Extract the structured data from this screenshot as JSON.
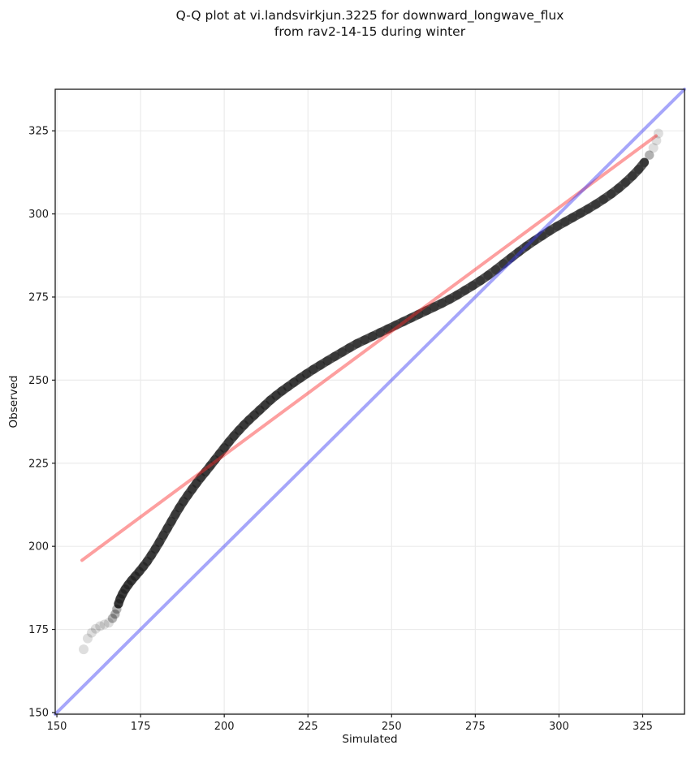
{
  "figure": {
    "title_line1": "Q-Q plot at vi.landsvirkjun.3225 for downward_longwave_flux",
    "title_line2": "from rav2-14-15 during winter"
  },
  "chart_data": {
    "type": "scatter",
    "title": "Q-Q plot at vi.landsvirkjun.3225 for downward_longwave_flux from rav2-14-15 during winter",
    "xlabel": "Simulated",
    "ylabel": "Observed",
    "xlim": [
      149.5,
      337.5
    ],
    "ylim": [
      149.5,
      337.5
    ],
    "xticks": [
      150,
      175,
      200,
      225,
      250,
      275,
      300,
      325
    ],
    "yticks": [
      150,
      175,
      200,
      225,
      250,
      275,
      300,
      325
    ],
    "grid": true,
    "grid_color": "#ebebeb",
    "background": "#ffffff",
    "axis_color": "#1a1a1a",
    "legend": "none",
    "series": [
      {
        "name": "qq-points",
        "type": "scatter",
        "color": "#000000",
        "alpha": 0.13,
        "marker_radius": 6,
        "points": [
          [
            158.0,
            169.0
          ],
          [
            159.2,
            172.3
          ],
          [
            160.4,
            174.0
          ],
          [
            161.6,
            175.2
          ],
          [
            162.9,
            176.0
          ],
          [
            164.2,
            176.5
          ],
          [
            165.5,
            177.0
          ],
          [
            166.6,
            178.3
          ],
          [
            167.4,
            179.6
          ],
          [
            167.9,
            181.1
          ],
          [
            168.4,
            182.7
          ],
          [
            168.9,
            184.2
          ],
          [
            169.6,
            185.7
          ],
          [
            170.4,
            187.1
          ],
          [
            171.3,
            188.4
          ],
          [
            172.3,
            189.7
          ],
          [
            173.4,
            191.0
          ],
          [
            174.6,
            192.4
          ],
          [
            175.8,
            193.9
          ],
          [
            177.0,
            195.5
          ],
          [
            178.2,
            197.3
          ],
          [
            179.4,
            199.2
          ],
          [
            180.6,
            201.2
          ],
          [
            181.8,
            203.3
          ],
          [
            183.0,
            205.4
          ],
          [
            184.2,
            207.5
          ],
          [
            185.4,
            209.6
          ],
          [
            186.6,
            211.6
          ],
          [
            187.8,
            213.5
          ],
          [
            189.1,
            215.4
          ],
          [
            190.4,
            217.2
          ],
          [
            191.7,
            219.0
          ],
          [
            193.0,
            220.7
          ],
          [
            194.4,
            222.4
          ],
          [
            195.8,
            224.2
          ],
          [
            197.2,
            226.0
          ],
          [
            198.6,
            227.8
          ],
          [
            200.0,
            229.6
          ],
          [
            201.4,
            231.4
          ],
          [
            202.9,
            233.2
          ],
          [
            204.4,
            234.9
          ],
          [
            205.9,
            236.5
          ],
          [
            207.4,
            238.0
          ],
          [
            209.0,
            239.5
          ],
          [
            210.6,
            241.0
          ],
          [
            212.2,
            242.5
          ],
          [
            213.8,
            244.0
          ],
          [
            215.5,
            245.4
          ],
          [
            217.2,
            246.7
          ],
          [
            219.0,
            248.0
          ],
          [
            220.8,
            249.3
          ],
          [
            222.7,
            250.6
          ],
          [
            224.6,
            251.9
          ],
          [
            226.6,
            253.2
          ],
          [
            228.7,
            254.5
          ],
          [
            230.8,
            255.8
          ],
          [
            233.0,
            257.1
          ],
          [
            235.2,
            258.4
          ],
          [
            237.4,
            259.7
          ],
          [
            239.7,
            261.0
          ],
          [
            242.0,
            262.1
          ],
          [
            244.3,
            263.2
          ],
          [
            246.6,
            264.3
          ],
          [
            248.9,
            265.4
          ],
          [
            251.2,
            266.5
          ],
          [
            253.5,
            267.6
          ],
          [
            255.8,
            268.7
          ],
          [
            258.1,
            269.8
          ],
          [
            260.4,
            270.9
          ],
          [
            262.7,
            272.0
          ],
          [
            265.0,
            273.1
          ],
          [
            267.3,
            274.3
          ],
          [
            269.6,
            275.6
          ],
          [
            271.9,
            277.0
          ],
          [
            274.2,
            278.4
          ],
          [
            276.5,
            279.9
          ],
          [
            278.8,
            281.5
          ],
          [
            281.1,
            283.2
          ],
          [
            283.4,
            285.0
          ],
          [
            285.7,
            286.8
          ],
          [
            288.0,
            288.6
          ],
          [
            290.3,
            290.3
          ],
          [
            292.6,
            291.9
          ],
          [
            294.9,
            293.4
          ],
          [
            297.2,
            294.9
          ],
          [
            299.5,
            296.3
          ],
          [
            301.8,
            297.6
          ],
          [
            304.1,
            298.9
          ],
          [
            306.4,
            300.2
          ],
          [
            308.7,
            301.5
          ],
          [
            311.0,
            302.9
          ],
          [
            313.3,
            304.4
          ],
          [
            315.6,
            306.0
          ],
          [
            317.8,
            307.7
          ],
          [
            319.9,
            309.5
          ],
          [
            321.9,
            311.4
          ],
          [
            323.8,
            313.4
          ],
          [
            325.5,
            315.5
          ],
          [
            327.0,
            317.7
          ],
          [
            328.2,
            319.9
          ],
          [
            329.1,
            322.1
          ],
          [
            329.7,
            324.2
          ]
        ]
      },
      {
        "name": "fit-line",
        "type": "line",
        "color": "#fa2a2a",
        "alpha": 0.45,
        "width": 4,
        "points": [
          [
            157.5,
            195.8
          ],
          [
            329.0,
            323.5
          ]
        ]
      },
      {
        "name": "identity-line",
        "type": "line",
        "color": "#3a3af5",
        "alpha": 0.45,
        "width": 4,
        "points": [
          [
            149.5,
            149.5
          ],
          [
            337.5,
            337.5
          ]
        ]
      }
    ]
  }
}
